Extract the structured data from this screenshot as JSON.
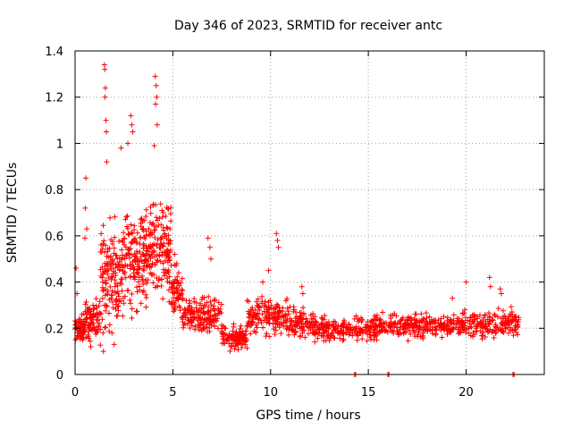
{
  "chart_data": {
    "type": "scatter",
    "title": "Day 346 of 2023, SRMTID for receiver antc",
    "xlabel": "GPS time / hours",
    "ylabel": "SRMTID / TECUs",
    "xlim": [
      0,
      24
    ],
    "ylim": [
      0,
      1.4
    ],
    "xticks": [
      "0",
      "5",
      "10",
      "15",
      "20"
    ],
    "yticks": [
      "0",
      "0.2",
      "0.4",
      "0.6",
      "0.8",
      "1",
      "1.2",
      "1.4"
    ],
    "grid": true,
    "marker": "plus",
    "color": "#ff0000",
    "segments": [
      {
        "x0": 0.0,
        "x1": 0.5,
        "base": 0.2,
        "spread": 0.08,
        "n": 60
      },
      {
        "x0": 0.5,
        "x1": 1.3,
        "base": 0.24,
        "spread": 0.14,
        "n": 80
      },
      {
        "x0": 1.3,
        "x1": 2.5,
        "base": 0.42,
        "spread": 0.3,
        "n": 150
      },
      {
        "x0": 2.5,
        "x1": 3.8,
        "base": 0.5,
        "spread": 0.3,
        "n": 160
      },
      {
        "x0": 3.8,
        "x1": 4.9,
        "base": 0.55,
        "spread": 0.28,
        "n": 140
      },
      {
        "x0": 4.9,
        "x1": 5.5,
        "base": 0.35,
        "spread": 0.15,
        "n": 60
      },
      {
        "x0": 5.5,
        "x1": 7.5,
        "base": 0.26,
        "spread": 0.1,
        "n": 160
      },
      {
        "x0": 7.5,
        "x1": 8.8,
        "base": 0.16,
        "spread": 0.07,
        "n": 100
      },
      {
        "x0": 8.8,
        "x1": 11.0,
        "base": 0.25,
        "spread": 0.11,
        "n": 170
      },
      {
        "x0": 11.0,
        "x1": 12.2,
        "base": 0.22,
        "spread": 0.09,
        "n": 80
      },
      {
        "x0": 12.2,
        "x1": 15.5,
        "base": 0.2,
        "spread": 0.07,
        "n": 220
      },
      {
        "x0": 15.5,
        "x1": 19.8,
        "base": 0.21,
        "spread": 0.07,
        "n": 260
      },
      {
        "x0": 19.8,
        "x1": 22.7,
        "base": 0.22,
        "spread": 0.08,
        "n": 180
      }
    ],
    "outliers": [
      {
        "x": 1.5,
        "y": 1.34
      },
      {
        "x": 1.52,
        "y": 1.32
      },
      {
        "x": 1.55,
        "y": 1.24
      },
      {
        "x": 1.53,
        "y": 1.2
      },
      {
        "x": 1.58,
        "y": 1.1
      },
      {
        "x": 1.6,
        "y": 1.05
      },
      {
        "x": 1.62,
        "y": 0.92
      },
      {
        "x": 4.1,
        "y": 1.29
      },
      {
        "x": 4.15,
        "y": 1.25
      },
      {
        "x": 4.18,
        "y": 1.2
      },
      {
        "x": 4.12,
        "y": 1.17
      },
      {
        "x": 4.2,
        "y": 1.08
      },
      {
        "x": 4.05,
        "y": 0.99
      },
      {
        "x": 2.85,
        "y": 1.12
      },
      {
        "x": 2.9,
        "y": 1.08
      },
      {
        "x": 2.95,
        "y": 1.05
      },
      {
        "x": 2.7,
        "y": 1.0
      },
      {
        "x": 2.35,
        "y": 0.98
      },
      {
        "x": 0.55,
        "y": 0.85
      },
      {
        "x": 0.52,
        "y": 0.72
      },
      {
        "x": 0.6,
        "y": 0.63
      },
      {
        "x": 0.5,
        "y": 0.59
      },
      {
        "x": 0.05,
        "y": 0.46
      },
      {
        "x": 0.1,
        "y": 0.35
      },
      {
        "x": 1.45,
        "y": 0.1
      },
      {
        "x": 2.0,
        "y": 0.13
      },
      {
        "x": 0.8,
        "y": 0.12
      },
      {
        "x": 10.3,
        "y": 0.61
      },
      {
        "x": 10.35,
        "y": 0.58
      },
      {
        "x": 10.4,
        "y": 0.55
      },
      {
        "x": 9.9,
        "y": 0.45
      },
      {
        "x": 9.6,
        "y": 0.4
      },
      {
        "x": 6.8,
        "y": 0.59
      },
      {
        "x": 6.9,
        "y": 0.55
      },
      {
        "x": 6.95,
        "y": 0.5
      },
      {
        "x": 5.1,
        "y": 0.52
      },
      {
        "x": 5.2,
        "y": 0.48
      },
      {
        "x": 5.3,
        "y": 0.44
      },
      {
        "x": 11.6,
        "y": 0.38
      },
      {
        "x": 11.65,
        "y": 0.35
      },
      {
        "x": 20.0,
        "y": 0.4
      },
      {
        "x": 21.2,
        "y": 0.42
      },
      {
        "x": 21.25,
        "y": 0.38
      },
      {
        "x": 21.75,
        "y": 0.37
      },
      {
        "x": 21.8,
        "y": 0.35
      },
      {
        "x": 19.3,
        "y": 0.33
      },
      {
        "x": 14.3,
        "y": 0.0
      },
      {
        "x": 14.35,
        "y": 0.0
      },
      {
        "x": 16.0,
        "y": 0.0
      },
      {
        "x": 16.05,
        "y": 0.0
      },
      {
        "x": 22.4,
        "y": 0.0
      },
      {
        "x": 22.45,
        "y": 0.0
      }
    ]
  }
}
